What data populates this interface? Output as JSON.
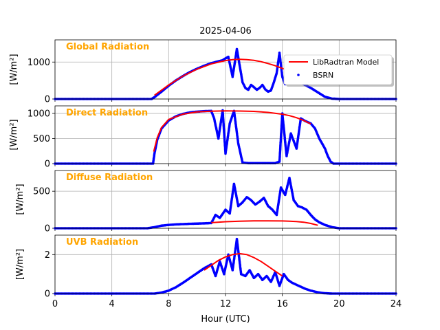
{
  "chart_data": {
    "type": "line",
    "title": "2025-04-06",
    "xlabel": "Hour (UTC)",
    "xlim": [
      0,
      24
    ],
    "xticks": [
      0,
      4,
      8,
      12,
      16,
      20,
      24
    ],
    "grid": true,
    "legend": {
      "placement": "top-right",
      "panel": 0,
      "entries": [
        "LibRadtran Model",
        "BSRN"
      ]
    },
    "colors": {
      "model": "#ff0000",
      "bsrn": "#0000ff",
      "panel_label": "#ffa500"
    },
    "panels": [
      {
        "name": "Global Radiation",
        "ylabel": "[W/m²]",
        "ylim": [
          0,
          1600
        ],
        "yticks": [
          0,
          1000
        ],
        "model": {
          "name": "LibRadtran Model",
          "x": [
            7.0,
            8,
            9,
            10,
            11,
            12,
            12.5,
            13,
            13.5,
            14,
            14.5,
            15,
            15.5,
            16,
            16.5,
            17.0
          ],
          "y": [
            100,
            380,
            620,
            810,
            950,
            1040,
            1065,
            1075,
            1065,
            1045,
            1010,
            960,
            900,
            830,
            760,
            690
          ]
        },
        "bsrn": {
          "name": "BSRN",
          "x": [
            0,
            6.8,
            7,
            7.5,
            8,
            8.5,
            9,
            9.5,
            10,
            10.5,
            11,
            11.5,
            11.8,
            12,
            12.2,
            12.5,
            12.8,
            13,
            13.2,
            13.4,
            13.6,
            13.8,
            14,
            14.2,
            14.4,
            14.6,
            14.8,
            15,
            15.2,
            15.4,
            15.6,
            15.8,
            16,
            16.2,
            16.5,
            17,
            17.5,
            18,
            18.5,
            19,
            19.5,
            20,
            24
          ],
          "y": [
            0,
            0,
            50,
            200,
            360,
            500,
            620,
            730,
            820,
            900,
            970,
            1020,
            1050,
            1100,
            1140,
            600,
            1350,
            900,
            450,
            300,
            250,
            380,
            320,
            250,
            300,
            380,
            260,
            200,
            230,
            450,
            700,
            1250,
            600,
            400,
            650,
            500,
            400,
            300,
            180,
            60,
            10,
            0,
            0
          ]
        }
      },
      {
        "name": "Direct Radiation",
        "ylabel": "[W/m²]",
        "ylim": [
          0,
          1150
        ],
        "yticks": [
          0,
          500,
          1000
        ],
        "model": {
          "name": "LibRadtran Model",
          "x": [
            6.95,
            7.2,
            7.5,
            8,
            9,
            10,
            11,
            12,
            13,
            14,
            15,
            16,
            16.5,
            17,
            17.5,
            18.0
          ],
          "y": [
            240,
            520,
            720,
            880,
            985,
            1030,
            1045,
            1050,
            1048,
            1040,
            1020,
            985,
            955,
            915,
            860,
            790
          ]
        },
        "bsrn": {
          "name": "BSRN",
          "x": [
            0,
            6.9,
            7.0,
            7.2,
            7.5,
            8,
            8.5,
            9,
            9.5,
            10,
            10.5,
            11,
            11.2,
            11.5,
            11.8,
            12,
            12.3,
            12.6,
            12.9,
            13.2,
            13.6,
            14,
            14.5,
            15,
            15.5,
            15.8,
            16,
            16.3,
            16.6,
            17,
            17.3,
            17.6,
            18,
            18.3,
            18.6,
            19,
            19.2,
            19.4,
            19.6,
            24
          ],
          "y": [
            0,
            0,
            200,
            480,
            700,
            860,
            940,
            990,
            1020,
            1035,
            1045,
            1050,
            900,
            500,
            1060,
            200,
            800,
            1050,
            400,
            20,
            10,
            10,
            10,
            10,
            10,
            40,
            1000,
            150,
            600,
            300,
            900,
            850,
            800,
            700,
            500,
            300,
            150,
            40,
            0,
            0
          ]
        }
      },
      {
        "name": "Diffuse Radiation",
        "ylabel": "[W/m²]",
        "ylim": [
          0,
          780
        ],
        "yticks": [
          0,
          500
        ],
        "model": {
          "name": "LibRadtran Model",
          "x": [
            11.0,
            12,
            13,
            14,
            15,
            16,
            16.5,
            17,
            17.5,
            18,
            18.5
          ],
          "y": [
            75,
            88,
            95,
            100,
            100,
            98,
            95,
            90,
            82,
            65,
            40
          ]
        },
        "bsrn": {
          "name": "BSRN",
          "x": [
            0,
            6.5,
            7,
            7.5,
            8,
            8.5,
            9,
            9.5,
            10,
            10.5,
            11,
            11.3,
            11.6,
            12,
            12.3,
            12.6,
            12.9,
            13.2,
            13.5,
            13.8,
            14.1,
            14.4,
            14.7,
            15,
            15.3,
            15.6,
            15.9,
            16.2,
            16.5,
            16.8,
            17.1,
            17.4,
            17.7,
            18,
            18.3,
            18.6,
            19,
            19.5,
            20,
            24
          ],
          "y": [
            0,
            0,
            15,
            35,
            45,
            52,
            56,
            60,
            63,
            66,
            70,
            180,
            140,
            250,
            200,
            600,
            300,
            350,
            420,
            380,
            320,
            360,
            410,
            300,
            250,
            180,
            550,
            450,
            680,
            380,
            300,
            280,
            250,
            180,
            120,
            80,
            45,
            15,
            0,
            0
          ]
        }
      },
      {
        "name": "UVB Radiation",
        "ylabel": "[W/m²]",
        "ylim": [
          0,
          3
        ],
        "yticks": [
          0,
          2
        ],
        "model": {
          "name": "LibRadtran Model",
          "x": [
            10.5,
            11,
            11.5,
            12,
            12.5,
            13,
            13.5,
            14,
            14.5,
            15,
            15.5,
            16.0
          ],
          "y": [
            1.2,
            1.45,
            1.7,
            1.88,
            2.0,
            2.05,
            2.0,
            1.85,
            1.65,
            1.4,
            1.15,
            0.9
          ]
        },
        "bsrn": {
          "name": "BSRN",
          "x": [
            0,
            7,
            7.5,
            8,
            8.5,
            9,
            9.5,
            10,
            10.5,
            11,
            11.3,
            11.6,
            11.9,
            12.2,
            12.5,
            12.8,
            13.1,
            13.4,
            13.7,
            14,
            14.3,
            14.6,
            14.9,
            15.2,
            15.5,
            15.8,
            16.1,
            16.4,
            16.7,
            17,
            17.3,
            17.6,
            18,
            18.4,
            18.8,
            19.2,
            19.5,
            24
          ],
          "y": [
            0,
            0,
            0.05,
            0.15,
            0.32,
            0.55,
            0.8,
            1.05,
            1.3,
            1.5,
            0.9,
            1.65,
            1.0,
            2.0,
            1.2,
            2.8,
            1.0,
            0.9,
            1.2,
            0.8,
            1.0,
            0.7,
            0.9,
            0.6,
            1.1,
            0.4,
            1.0,
            0.7,
            0.55,
            0.45,
            0.35,
            0.25,
            0.15,
            0.08,
            0.03,
            0.01,
            0,
            0
          ]
        }
      }
    ]
  }
}
